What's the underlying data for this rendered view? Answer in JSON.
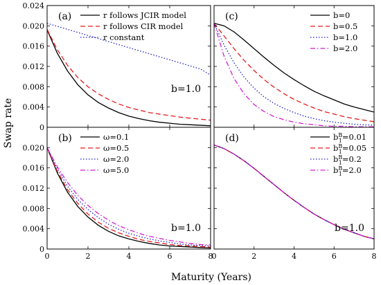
{
  "figure": {
    "ylabel": "Swap rate",
    "xlabel": "Maturity (Years)"
  },
  "chart_data": [
    {
      "panel": "(a)",
      "type": "line",
      "xlim": [
        0,
        8
      ],
      "ylim": [
        0,
        0.024
      ],
      "xticks": [
        "0",
        "2",
        "4",
        "6",
        "8"
      ],
      "yticks": [
        "0",
        "0.004",
        "0.008",
        "0.012",
        "0.016",
        "0.020",
        "0.024"
      ],
      "legend_position": "top-right",
      "annotation": "b=1.0",
      "x": [
        0,
        0.5,
        1,
        1.5,
        2,
        2.5,
        3,
        3.5,
        4,
        4.5,
        5,
        5.5,
        6,
        6.5,
        7,
        7.5,
        8
      ],
      "series": [
        {
          "name": "r follows JCIR model",
          "color": "#000000",
          "dash": "solid",
          "values": [
            0.0192,
            0.0146,
            0.0111,
            0.0084,
            0.0064,
            0.0049,
            0.0038,
            0.0029,
            0.0022,
            0.0017,
            0.0013,
            0.001,
            0.0008,
            0.0006,
            0.0005,
            0.0004,
            0.0003
          ]
        },
        {
          "name": "r follows CIR model",
          "color": "#e41a1c",
          "dash": "dashed",
          "values": [
            0.0193,
            0.0153,
            0.0122,
            0.0098,
            0.008,
            0.0066,
            0.0055,
            0.0046,
            0.0039,
            0.0034,
            0.0029,
            0.0026,
            0.0023,
            0.002,
            0.0018,
            0.0016,
            0.0014
          ]
        },
        {
          "name": "r constant",
          "color": "#1f1fd0",
          "dash": "dotted",
          "values": [
            0.0205,
            0.0199,
            0.0193,
            0.0187,
            0.0181,
            0.0175,
            0.0169,
            0.0163,
            0.0157,
            0.0151,
            0.0145,
            0.0139,
            0.0133,
            0.0127,
            0.0121,
            0.0115,
            0.0103
          ]
        }
      ]
    },
    {
      "panel": "(b)",
      "type": "line",
      "xlim": [
        0,
        8
      ],
      "ylim": [
        0,
        0.024
      ],
      "xticks": [
        "0",
        "2",
        "4",
        "6",
        "8"
      ],
      "yticks": [
        "0",
        "0.004",
        "0.008",
        "0.012",
        "0.016",
        "0.020",
        ""
      ],
      "legend_position": "top-right",
      "annotation": "b=1.0",
      "x": [
        0,
        0.5,
        1,
        1.5,
        2,
        2.5,
        3,
        3.5,
        4,
        4.5,
        5,
        5.5,
        6,
        6.5,
        7,
        7.5,
        8
      ],
      "series": [
        {
          "name": "ω=0.1",
          "color": "#000000",
          "dash": "solid",
          "values": [
            0.02,
            0.015,
            0.0112,
            0.0084,
            0.0063,
            0.0047,
            0.0035,
            0.0026,
            0.002,
            0.0015,
            0.0011,
            0.0008,
            0.0006,
            0.0005,
            0.0004,
            0.0003,
            0.0002
          ]
        },
        {
          "name": "ω=0.5",
          "color": "#e41a1c",
          "dash": "dashed",
          "values": [
            0.02,
            0.0153,
            0.0117,
            0.009,
            0.0069,
            0.0053,
            0.0041,
            0.0032,
            0.0025,
            0.0019,
            0.0015,
            0.0012,
            0.0009,
            0.0007,
            0.0006,
            0.0005,
            0.0004
          ]
        },
        {
          "name": "ω=2.0",
          "color": "#1f1fd0",
          "dash": "dotted",
          "values": [
            0.02,
            0.0158,
            0.0124,
            0.0098,
            0.0078,
            0.0062,
            0.0049,
            0.0039,
            0.0031,
            0.0025,
            0.002,
            0.0016,
            0.0013,
            0.001,
            0.0008,
            0.0007,
            0.0006
          ]
        },
        {
          "name": "ω=5.0",
          "color": "#d01fd0",
          "dash": "dashdot",
          "values": [
            0.02,
            0.0162,
            0.0131,
            0.0106,
            0.0086,
            0.007,
            0.0057,
            0.0046,
            0.0038,
            0.0031,
            0.0025,
            0.0021,
            0.0017,
            0.0014,
            0.0011,
            0.0009,
            0.0008
          ]
        }
      ]
    },
    {
      "panel": "(c)",
      "type": "line",
      "xlim": [
        0,
        8
      ],
      "ylim": [
        0,
        0.024
      ],
      "xticks": [
        "0",
        "2",
        "4",
        "6",
        "8"
      ],
      "yticks": [],
      "legend_position": "top-right",
      "annotation": "",
      "x": [
        0,
        0.5,
        1,
        1.5,
        2,
        2.5,
        3,
        3.5,
        4,
        4.5,
        5,
        5.5,
        6,
        6.5,
        7,
        7.5,
        8
      ],
      "series": [
        {
          "name": "b=0",
          "color": "#000000",
          "dash": "solid",
          "values": [
            0.0205,
            0.02,
            0.0188,
            0.0172,
            0.0155,
            0.0138,
            0.0122,
            0.0107,
            0.0094,
            0.0082,
            0.0071,
            0.0062,
            0.0054,
            0.0046,
            0.004,
            0.0035,
            0.003
          ]
        },
        {
          "name": "b=0.5",
          "color": "#e41a1c",
          "dash": "dashed",
          "values": [
            0.0205,
            0.018,
            0.0155,
            0.0132,
            0.0112,
            0.0094,
            0.0079,
            0.0066,
            0.0055,
            0.0046,
            0.0038,
            0.0031,
            0.0026,
            0.0021,
            0.0017,
            0.0014,
            0.0011
          ]
        },
        {
          "name": "b=1.0",
          "color": "#1f1fd0",
          "dash": "dotted",
          "values": [
            0.0205,
            0.0162,
            0.0127,
            0.0099,
            0.0077,
            0.006,
            0.0047,
            0.0037,
            0.0029,
            0.0022,
            0.0017,
            0.0013,
            0.001,
            0.0008,
            0.0006,
            0.0005,
            0.0004
          ]
        },
        {
          "name": "b=2.0",
          "color": "#d01fd0",
          "dash": "dashdot",
          "values": [
            0.0205,
            0.014,
            0.0096,
            0.0066,
            0.0045,
            0.0031,
            0.0021,
            0.0015,
            0.001,
            0.0007,
            0.0005,
            0.0003,
            0.0002,
            0.0002,
            0.0001,
            0.0001,
            0.0001
          ]
        }
      ]
    },
    {
      "panel": "(d)",
      "type": "line",
      "xlim": [
        0,
        8
      ],
      "ylim": [
        0,
        0.024
      ],
      "xticks": [
        "0",
        "2",
        "4",
        "6",
        "8"
      ],
      "yticks": [],
      "legend_position": "top-right",
      "annotation": "b=1.0",
      "x": [
        0,
        0.5,
        1,
        1.5,
        2,
        2.5,
        3,
        3.5,
        4,
        4.5,
        5,
        5.5,
        6,
        6.5,
        7,
        7.5,
        8
      ],
      "series": [
        {
          "name": "b1B=0.01",
          "label_main": "b",
          "label_sub": "1",
          "label_sup": "B",
          "label_value": "=0.01",
          "color": "#000000",
          "dash": "solid",
          "values": [
            0.0205,
            0.0198,
            0.0187,
            0.0174,
            0.0159,
            0.0143,
            0.0127,
            0.0111,
            0.0096,
            0.0082,
            0.0069,
            0.0058,
            0.0048,
            0.0039,
            0.0032,
            0.0025,
            0.002
          ]
        },
        {
          "name": "b1B=0.05",
          "label_main": "b",
          "label_sub": "1",
          "label_sup": "B",
          "label_value": "=0.05",
          "color": "#e41a1c",
          "dash": "dashed",
          "values": [
            0.0205,
            0.0198,
            0.0187,
            0.0174,
            0.0159,
            0.0143,
            0.0127,
            0.0111,
            0.0096,
            0.0082,
            0.0069,
            0.0058,
            0.0048,
            0.0039,
            0.0032,
            0.0025,
            0.002
          ]
        },
        {
          "name": "b1B=0.2",
          "label_main": "b",
          "label_sub": "1",
          "label_sup": "B",
          "label_value": "=0.2",
          "color": "#1f1fd0",
          "dash": "dotted",
          "values": [
            0.0205,
            0.0198,
            0.0187,
            0.0174,
            0.0159,
            0.0143,
            0.0127,
            0.0111,
            0.0096,
            0.0082,
            0.0069,
            0.0058,
            0.0048,
            0.0039,
            0.0032,
            0.0025,
            0.002
          ]
        },
        {
          "name": "b1B=2.0",
          "label_main": "b",
          "label_sub": "1",
          "label_sup": "B",
          "label_value": "=2.0",
          "color": "#d01fd0",
          "dash": "dashdot",
          "values": [
            0.0205,
            0.0198,
            0.0187,
            0.0174,
            0.0159,
            0.0143,
            0.0127,
            0.0111,
            0.0096,
            0.0082,
            0.0069,
            0.0058,
            0.0048,
            0.0039,
            0.0032,
            0.0025,
            0.002
          ]
        }
      ]
    }
  ]
}
